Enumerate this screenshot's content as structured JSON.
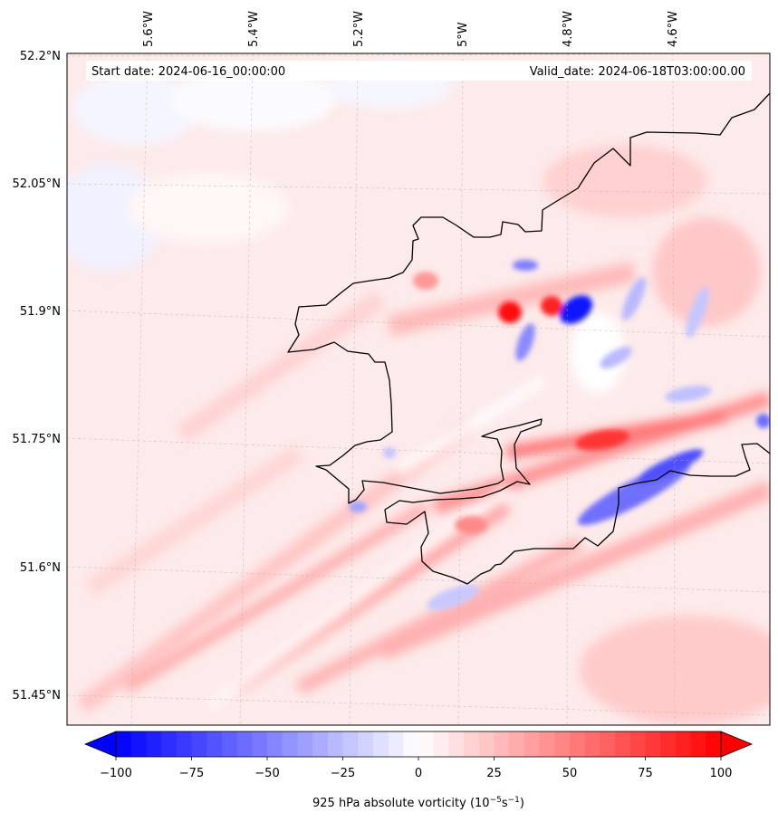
{
  "map": {
    "start_date": "Start date: 2024-06-16_00:00:00",
    "valid_date": "Valid_date: 2024-06-18T03:00:00.00",
    "lon_labels": [
      "5.6°W",
      "5.4°W",
      "5.2°W",
      "5°W",
      "4.8°W",
      "4.6°W"
    ],
    "lat_labels": [
      "52.2°N",
      "52.05°N",
      "51.9°N",
      "51.75°N",
      "51.6°N",
      "51.45°N"
    ],
    "colors": {
      "positive": "#ff0000",
      "negative": "#0000ff",
      "coastline": "#000000"
    }
  },
  "colorbar": {
    "ticks": [
      "−100",
      "−75",
      "−50",
      "−25",
      "0",
      "25",
      "50",
      "75",
      "100"
    ],
    "tick_values": [
      -100,
      -75,
      -50,
      -25,
      0,
      25,
      50,
      75,
      100
    ],
    "range": [
      -100,
      100
    ],
    "extend": "both",
    "label": "925 hPa absolute vorticity (10",
    "label_sup1": "−5",
    "label_mid": "s",
    "label_sup2": "−1",
    "label_end": ")"
  }
}
